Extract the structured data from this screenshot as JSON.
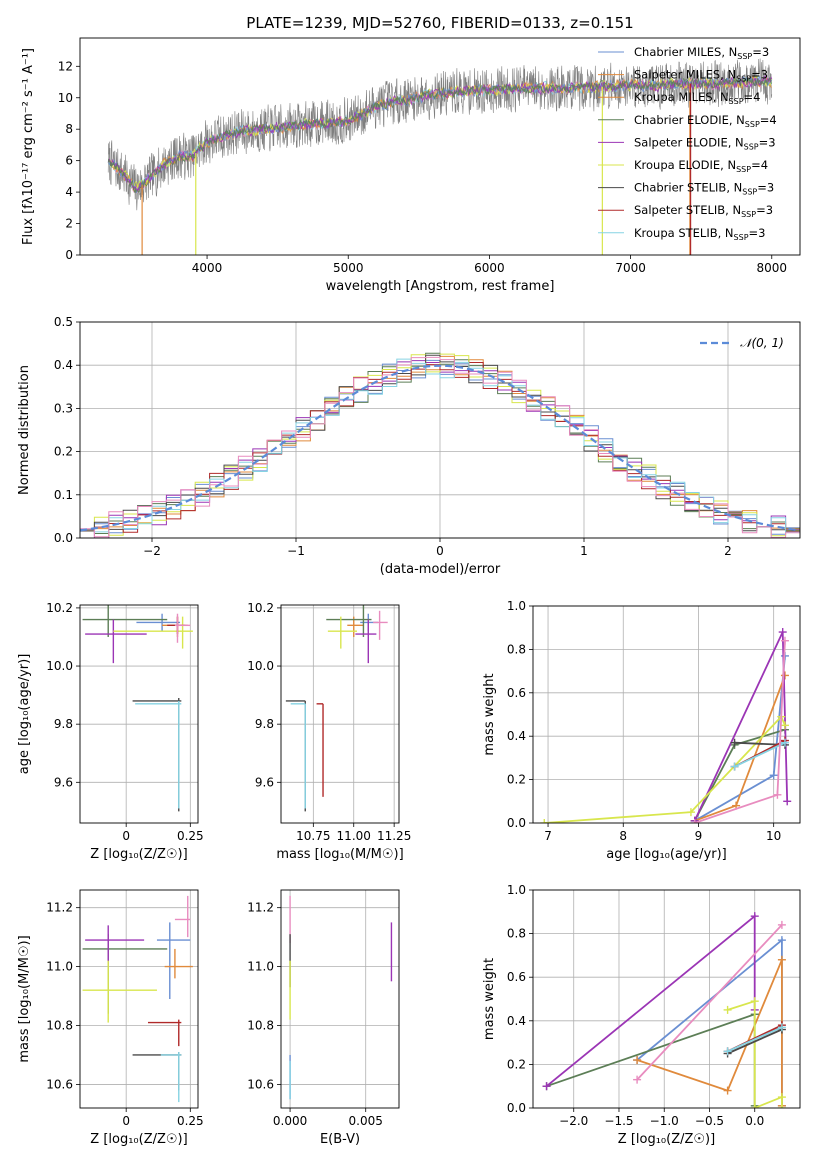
{
  "figure_title": "PLATE=1239, MJD=52760, FIBERID=0133, z=0.151",
  "colors": [
    "#6a8fd2",
    "#e08a3c",
    "#8a8a8a",
    "#5c7e56",
    "#9b35b5",
    "#d8e64d",
    "#4a4a4a",
    "#b02a2a",
    "#86d3e3",
    "#e88cbf"
  ],
  "chart_data": [
    {
      "id": "spectrum",
      "type": "line",
      "xlabel": "wavelength [Angstrom, rest frame]",
      "ylabel": "Flux [f$_\\lambda$10$^{-17}$ erg cm$^{-2}$ s$^{-1}$ A$^{-1}$]",
      "ylabel_display": "Flux [fλ10⁻¹⁷ erg cm⁻² s⁻¹ A⁻¹]",
      "xlim": [
        3100,
        8200
      ],
      "ylim": [
        0,
        13.8
      ],
      "xticks": [
        4000,
        5000,
        6000,
        7000,
        8000
      ],
      "yticks": [
        0,
        2,
        4,
        6,
        8,
        10,
        12
      ],
      "grid": false,
      "legend_position": "upper-right",
      "continuum": {
        "x": [
          3300,
          3400,
          3500,
          3600,
          3700,
          3800,
          3900,
          4000,
          4200,
          4400,
          4600,
          4800,
          5000,
          5200,
          5400,
          5600,
          5800,
          6000,
          6200,
          6400,
          6600,
          6800,
          7000,
          7200,
          7400,
          7600,
          7800,
          8000
        ],
        "y": [
          6.0,
          5.2,
          4.2,
          4.9,
          5.8,
          6.3,
          6.3,
          7.2,
          7.8,
          8.0,
          8.2,
          8.4,
          8.5,
          9.5,
          9.9,
          10.2,
          10.4,
          10.5,
          10.6,
          10.6,
          10.6,
          10.7,
          10.8,
          10.8,
          10.9,
          10.9,
          11.0,
          11.0
        ]
      },
      "legend": [
        "Chabrier MILES, N$_{SSP}$=3",
        "Salpeter MILES, N$_{SSP}$=3",
        "Kroupa MILES, N$_{SSP}$=4",
        "Chabrier ELODIE, N$_{SSP}$=4",
        "Salpeter ELODIE, N$_{SSP}$=3",
        "Kroupa ELODIE, N$_{SSP}$=4",
        "Chabrier STELIB, N$_{SSP}$=3",
        "Salpeter STELIB, N$_{SSP}$=3",
        "Kroupa STELIB, N$_{SSP}$=3"
      ],
      "legend_display": [
        [
          "Chabrier MILES, N",
          "SSP",
          "=3"
        ],
        [
          "Salpeter MILES, N",
          "SSP",
          "=3"
        ],
        [
          "Kroupa MILES, N",
          "SSP",
          "=4"
        ],
        [
          "Chabrier ELODIE, N",
          "SSP",
          "=4"
        ],
        [
          "Salpeter ELODIE, N",
          "SSP",
          "=3"
        ],
        [
          "Kroupa ELODIE, N",
          "SSP",
          "=4"
        ],
        [
          "Chabrier STELIB, N",
          "SSP",
          "=3"
        ],
        [
          "Salpeter STELIB, N",
          "SSP",
          "=3"
        ],
        [
          "Kroupa STELIB, N",
          "SSP",
          "=3"
        ]
      ],
      "legend_colors": [
        "#6a8fd2",
        "#e08a3c",
        "#e08a3c",
        "#5c7e56",
        "#9b35b5",
        "#d8e64d",
        "#4a4a4a",
        "#b02a2a",
        "#86d3e3"
      ]
    },
    {
      "id": "residuals",
      "type": "line",
      "xlabel": "(data-model)/error",
      "ylabel": "Normed distribution",
      "xlim": [
        -2.5,
        2.5
      ],
      "ylim": [
        0,
        0.5
      ],
      "xticks": [
        -2,
        -1,
        0,
        1,
        2
      ],
      "xtick_labels": [
        "−2",
        "−1",
        "0",
        "1",
        "2"
      ],
      "yticks": [
        0.0,
        0.1,
        0.2,
        0.3,
        0.4,
        0.5
      ],
      "grid": true,
      "legend_position": "upper-right",
      "legend": [
        "𝒩(0, 1)"
      ],
      "gaussian": {
        "mu": 0,
        "sigma": 1,
        "color": "#5b8bd8"
      },
      "bin_width": 0.1,
      "hist_colors": [
        "#6a8fd2",
        "#e08a3c",
        "#5c7e56",
        "#9b35b5",
        "#d8e64d",
        "#4a4a4a",
        "#b02a2a",
        "#86d3e3",
        "#e88cbf"
      ]
    },
    {
      "id": "age-vs-Z",
      "type": "scatter",
      "xlabel": "Z [log$_{10}$($Z/Z_\\odot$)]",
      "xlabel_display": "Z [log₁₀(Z/Z☉)]",
      "ylabel": "age  [log$_{10}$($age/yr$)]",
      "ylabel_display": "age  [log₁₀(age/yr)]",
      "xlim": [
        -0.18,
        0.28
      ],
      "ylim": [
        9.46,
        10.21
      ],
      "xticks": [
        0.0,
        0.25
      ],
      "yticks": [
        9.6,
        9.8,
        10.0,
        10.2
      ],
      "grid": true,
      "points": [
        {
          "x": 0.14,
          "y": 10.15,
          "xerr": [
            0.1,
            0.07
          ],
          "yerr": [
            0.03,
            0.03
          ],
          "color": "#6a8fd2"
        },
        {
          "x": 0.2,
          "y": 10.14,
          "xerr": [
            0.06,
            0.04
          ],
          "yerr": [
            0.04,
            0.03
          ],
          "color": "#e08a3c"
        },
        {
          "x": -0.07,
          "y": 10.16,
          "xerr": [
            0.1,
            0.23
          ],
          "yerr": [
            0.06,
            0.05
          ],
          "color": "#5c7e56"
        },
        {
          "x": -0.05,
          "y": 10.11,
          "xerr": [
            0.11,
            0.13
          ],
          "yerr": [
            0.1,
            0.05
          ],
          "color": "#9b35b5"
        },
        {
          "x": 0.22,
          "y": 10.12,
          "xerr": [
            0.27,
            0.04
          ],
          "yerr": [
            0.06,
            0.05
          ],
          "color": "#d8e64d"
        },
        {
          "x": 0.205,
          "y": 9.88,
          "xerr": [
            0.18,
            0.01
          ],
          "yerr": [
            0.38,
            0.01
          ],
          "color": "#4a4a4a"
        },
        {
          "x": 0.2,
          "y": 10.14,
          "xerr": [
            0.04,
            0.03
          ],
          "yerr": [
            0.03,
            0.03
          ],
          "color": "#b02a2a"
        },
        {
          "x": 0.205,
          "y": 9.87,
          "xerr": [
            0.17,
            0.01
          ],
          "yerr": [
            0.36,
            0.01
          ],
          "color": "#86d3e3"
        },
        {
          "x": 0.2,
          "y": 10.14,
          "xerr": [
            0.01,
            0.05
          ],
          "yerr": [
            0.06,
            0.04
          ],
          "color": "#e88cbf"
        }
      ]
    },
    {
      "id": "age-vs-mass",
      "type": "scatter",
      "xlabel": "mass [log$_{10}$($M/M_\\odot$)]",
      "xlabel_display": "mass [log₁₀(M/M☉)]",
      "ylabel": "",
      "xlim": [
        10.55,
        11.28
      ],
      "ylim": [
        9.46,
        10.21
      ],
      "xticks": [
        10.75,
        11.0,
        11.25
      ],
      "xtick_labels": [
        "10.75",
        "11.00",
        "11.25"
      ],
      "yticks": [
        9.6,
        9.8,
        10.0,
        10.2
      ],
      "grid": true,
      "points": [
        {
          "x": 11.09,
          "y": 10.15,
          "xerr": [
            0.05,
            0.06
          ],
          "yerr": [
            0.03,
            0.03
          ],
          "color": "#6a8fd2"
        },
        {
          "x": 11.0,
          "y": 10.14,
          "xerr": [
            0.04,
            0.06
          ],
          "yerr": [
            0.04,
            0.03
          ],
          "color": "#e08a3c"
        },
        {
          "x": 11.06,
          "y": 10.16,
          "xerr": [
            0.23,
            0.05
          ],
          "yerr": [
            0.06,
            0.05
          ],
          "color": "#5c7e56"
        },
        {
          "x": 11.09,
          "y": 10.11,
          "xerr": [
            0.08,
            0.05
          ],
          "yerr": [
            0.1,
            0.05
          ],
          "color": "#9b35b5"
        },
        {
          "x": 10.92,
          "y": 10.12,
          "xerr": [
            0.08,
            0.1
          ],
          "yerr": [
            0.06,
            0.05
          ],
          "color": "#d8e64d"
        },
        {
          "x": 10.7,
          "y": 9.88,
          "xerr": [
            0.12,
            0.0
          ],
          "yerr": [
            0.38,
            0.0
          ],
          "color": "#4a4a4a"
        },
        {
          "x": 10.81,
          "y": 9.87,
          "xerr": [
            0.04,
            0.0
          ],
          "yerr": [
            0.32,
            0.0
          ],
          "color": "#b02a2a"
        },
        {
          "x": 10.7,
          "y": 9.87,
          "xerr": [
            0.09,
            0.0
          ],
          "yerr": [
            0.36,
            0.0
          ],
          "color": "#86d3e3"
        },
        {
          "x": 11.16,
          "y": 10.15,
          "xerr": [
            0.04,
            0.05
          ],
          "yerr": [
            0.06,
            0.04
          ],
          "color": "#e88cbf"
        }
      ]
    },
    {
      "id": "weight-vs-age",
      "type": "line",
      "xlabel": "age  [log$_{10}$($age/yr$)]",
      "xlabel_display": "age  [log₁₀(age/yr)]",
      "ylabel": "mass weight",
      "xlim": [
        6.8,
        10.35
      ],
      "ylim": [
        0,
        1
      ],
      "xticks": [
        7,
        8,
        9,
        10
      ],
      "yticks": [
        0.0,
        0.2,
        0.4,
        0.6,
        0.8,
        1.0
      ],
      "grid": true,
      "series": [
        {
          "color": "#6a8fd2",
          "x": [
            8.95,
            10.0,
            10.15
          ],
          "y": [
            0.01,
            0.22,
            0.77
          ]
        },
        {
          "color": "#e08a3c",
          "x": [
            8.95,
            9.5,
            10.15
          ],
          "y": [
            0.01,
            0.08,
            0.68
          ]
        },
        {
          "color": "#5c7e56",
          "x": [
            8.95,
            9.48,
            10.15
          ],
          "y": [
            0.01,
            0.36,
            0.43
          ]
        },
        {
          "color": "#9b35b5",
          "x": [
            8.95,
            10.12,
            10.18
          ],
          "y": [
            0.01,
            0.88,
            0.1
          ]
        },
        {
          "color": "#d8e64d",
          "x": [
            6.95,
            8.9,
            10.1,
            10.15
          ],
          "y": [
            0.0,
            0.05,
            0.49,
            0.45
          ]
        },
        {
          "color": "#4a4a4a",
          "x": [
            9.48,
            10.15
          ],
          "y": [
            0.37,
            0.36
          ]
        },
        {
          "color": "#b02a2a",
          "x": [
            9.48,
            10.15
          ],
          "y": [
            0.26,
            0.38
          ]
        },
        {
          "color": "#86d3e3",
          "x": [
            9.48,
            10.15
          ],
          "y": [
            0.26,
            0.37
          ]
        },
        {
          "color": "#e88cbf",
          "x": [
            8.95,
            10.05,
            10.15
          ],
          "y": [
            0.0,
            0.13,
            0.84
          ]
        }
      ]
    },
    {
      "id": "mass-vs-Z",
      "type": "scatter",
      "xlabel": "Z [log$_{10}$($Z/Z_\\odot$)]",
      "xlabel_display": "Z [log₁₀(Z/Z☉)]",
      "ylabel": "mass [log$_{10}$($M/M_\\odot$)]",
      "ylabel_display": "mass [log₁₀(M/M☉)]",
      "xlim": [
        -0.18,
        0.28
      ],
      "ylim": [
        10.52,
        11.26
      ],
      "xticks": [
        0.0,
        0.25
      ],
      "yticks": [
        10.6,
        10.8,
        11.0,
        11.2
      ],
      "grid": true,
      "points": [
        {
          "x": 0.17,
          "y": 11.09,
          "xerr": [
            0.05,
            0.08
          ],
          "yerr": [
            0.2,
            0.06
          ],
          "color": "#6a8fd2"
        },
        {
          "x": 0.19,
          "y": 11.0,
          "xerr": [
            0.04,
            0.07
          ],
          "yerr": [
            0.04,
            0.06
          ],
          "color": "#e08a3c"
        },
        {
          "x": -0.07,
          "y": 11.06,
          "xerr": [
            0.1,
            0.23
          ],
          "yerr": [
            0.22,
            0.05
          ],
          "color": "#5c7e56"
        },
        {
          "x": -0.07,
          "y": 11.09,
          "xerr": [
            0.09,
            0.14
          ],
          "yerr": [
            0.08,
            0.05
          ],
          "color": "#9b35b5"
        },
        {
          "x": -0.07,
          "y": 10.92,
          "xerr": [
            0.1,
            0.19
          ],
          "yerr": [
            0.11,
            0.1
          ],
          "color": "#d8e64d"
        },
        {
          "x": 0.205,
          "y": 10.7,
          "xerr": [
            0.18,
            0.01
          ],
          "yerr": [
            0.12,
            0.01
          ],
          "color": "#4a4a4a"
        },
        {
          "x": 0.205,
          "y": 10.81,
          "xerr": [
            0.12,
            0.01
          ],
          "yerr": [
            0.08,
            0.01
          ],
          "color": "#b02a2a"
        },
        {
          "x": 0.205,
          "y": 10.7,
          "xerr": [
            0.07,
            0.01
          ],
          "yerr": [
            0.16,
            0.01
          ],
          "color": "#86d3e3"
        },
        {
          "x": 0.24,
          "y": 11.16,
          "xerr": [
            0.05,
            0.01
          ],
          "yerr": [
            0.06,
            0.08
          ],
          "color": "#e88cbf"
        }
      ]
    },
    {
      "id": "mass-vs-EBV",
      "type": "scatter",
      "xlabel": "E(B-V)",
      "ylabel": "",
      "xlim": [
        -0.0006,
        0.0072
      ],
      "ylim": [
        10.52,
        11.26
      ],
      "xticks": [
        0.0,
        0.005
      ],
      "xtick_labels": [
        "0.000",
        "0.005"
      ],
      "yticks": [
        10.6,
        10.8,
        11.0,
        11.2
      ],
      "grid": true,
      "points": [
        {
          "x": 0.0,
          "y": 11.18,
          "yerr": [
            0.1,
            0.06
          ],
          "color": "#e88cbf"
        },
        {
          "x": 0.0,
          "y": 11.05,
          "yerr": [
            0.12,
            0.06
          ],
          "color": "#4a4a4a"
        },
        {
          "x": 0.0,
          "y": 10.92,
          "yerr": [
            0.1,
            0.1
          ],
          "color": "#d8e64d"
        },
        {
          "x": 0.0,
          "y": 10.65,
          "yerr": [
            0.1,
            0.05
          ],
          "color": "#6a8fd2"
        },
        {
          "x": 0.0,
          "y": 10.63,
          "yerr": [
            0.08,
            0.05
          ],
          "color": "#86d3e3"
        },
        {
          "x": 0.0067,
          "y": 11.05,
          "yerr": [
            0.1,
            0.1
          ],
          "color": "#9b35b5"
        }
      ]
    },
    {
      "id": "weight-vs-Z",
      "type": "line",
      "xlabel": "Z [log$_{10}$($Z/Z_\\odot$)]",
      "xlabel_display": "Z [log₁₀(Z/Z☉)]",
      "ylabel": "mass weight",
      "xlim": [
        -2.45,
        0.5
      ],
      "ylim": [
        0,
        1
      ],
      "xticks": [
        -2.0,
        -1.5,
        -1.0,
        -0.5,
        0.0
      ],
      "xtick_labels": [
        "−2.0",
        "−1.5",
        "−1.0",
        "−0.5",
        "0.0"
      ],
      "yticks": [
        0.0,
        0.2,
        0.4,
        0.6,
        0.8,
        1.0
      ],
      "grid": true,
      "series": [
        {
          "color": "#6a8fd2",
          "x": [
            -1.3,
            0.3,
            0.3
          ],
          "y": [
            0.22,
            0.77,
            0.01
          ]
        },
        {
          "color": "#e08a3c",
          "x": [
            -1.3,
            -0.3,
            0.3,
            0.3
          ],
          "y": [
            0.22,
            0.08,
            0.68,
            0.01
          ]
        },
        {
          "color": "#5c7e56",
          "x": [
            -2.3,
            0.0,
            0.0
          ],
          "y": [
            0.1,
            0.43,
            0.01
          ]
        },
        {
          "color": "#9b35b5",
          "x": [
            -2.3,
            0.0,
            0.0
          ],
          "y": [
            0.1,
            0.88,
            0.45
          ]
        },
        {
          "color": "#d8e64d",
          "x": [
            -0.3,
            0.0,
            0.0,
            0.3,
            0.3
          ],
          "y": [
            0.45,
            0.49,
            0.0,
            0.05,
            0.0
          ]
        },
        {
          "color": "#4a4a4a",
          "x": [
            -0.3,
            0.3
          ],
          "y": [
            0.25,
            0.36
          ]
        },
        {
          "color": "#b02a2a",
          "x": [
            -0.3,
            0.3
          ],
          "y": [
            0.26,
            0.38
          ]
        },
        {
          "color": "#86d3e3",
          "x": [
            -0.3,
            0.3
          ],
          "y": [
            0.26,
            0.37
          ]
        },
        {
          "color": "#e88cbf",
          "x": [
            -1.3,
            0.3
          ],
          "y": [
            0.13,
            0.84
          ]
        }
      ]
    }
  ]
}
